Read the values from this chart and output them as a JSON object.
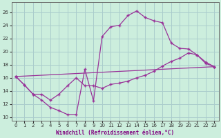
{
  "xlabel": "Windchill (Refroidissement éolien,°C)",
  "bg_color": "#cceedd",
  "line_color": "#993399",
  "grid_color": "#aacccc",
  "xlim": [
    -0.5,
    23.5
  ],
  "ylim": [
    9.5,
    27.5
  ],
  "xticks": [
    0,
    1,
    2,
    3,
    4,
    5,
    6,
    7,
    8,
    9,
    10,
    11,
    12,
    13,
    14,
    15,
    16,
    17,
    18,
    19,
    20,
    21,
    22,
    23
  ],
  "yticks": [
    10,
    12,
    14,
    16,
    18,
    20,
    22,
    24,
    26
  ],
  "curve1_x": [
    0,
    1,
    2,
    3,
    4,
    5,
    6,
    7,
    8,
    9,
    10,
    11,
    12,
    13,
    14,
    15,
    16,
    17,
    18,
    19,
    20,
    21,
    22,
    23
  ],
  "curve1_y": [
    16.2,
    14.9,
    13.5,
    12.6,
    11.5,
    11.0,
    10.4,
    10.4,
    17.3,
    12.5,
    22.3,
    23.8,
    24.0,
    25.5,
    26.2,
    25.2,
    24.7,
    24.4,
    21.3,
    20.5,
    20.4,
    19.5,
    18.2,
    17.7
  ],
  "curve2_x": [
    0,
    1,
    2,
    3,
    4,
    5,
    6,
    7,
    8,
    9,
    10,
    11,
    12,
    13,
    14,
    15,
    16,
    17,
    18,
    19,
    20,
    21,
    22,
    23
  ],
  "curve2_y": [
    16.2,
    14.9,
    13.5,
    13.5,
    12.6,
    13.5,
    14.8,
    16.0,
    14.8,
    14.8,
    14.4,
    15.0,
    15.2,
    15.5,
    16.0,
    16.4,
    17.0,
    17.8,
    18.5,
    19.0,
    19.8,
    19.5,
    18.4,
    17.7
  ],
  "curve3_x": [
    0,
    23
  ],
  "curve3_y": [
    16.2,
    17.7
  ]
}
